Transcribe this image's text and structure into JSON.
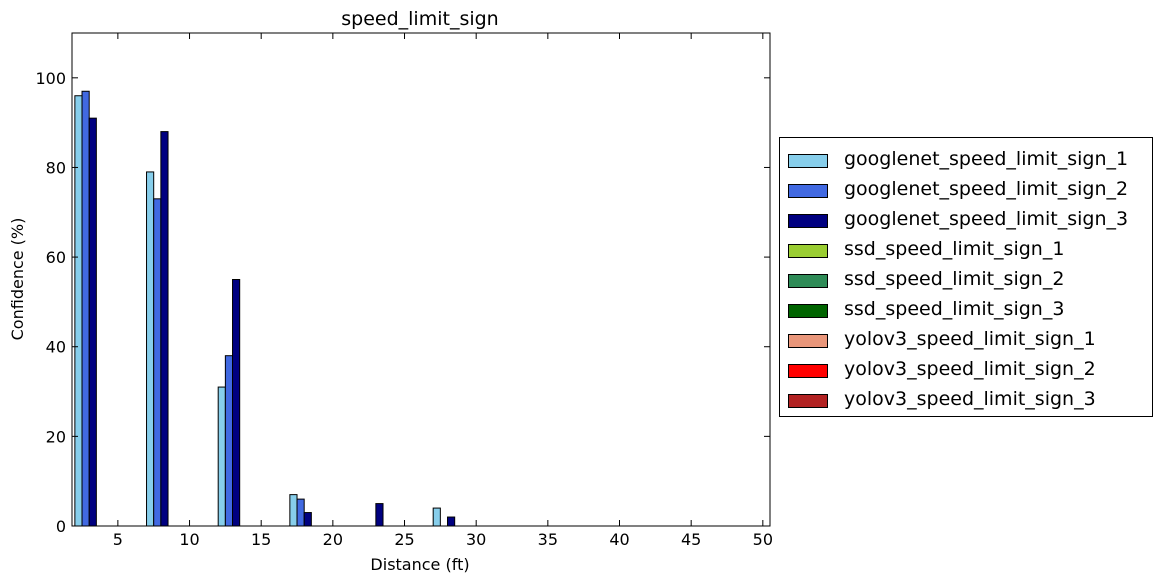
{
  "chart_data": {
    "type": "bar",
    "title": "speed_limit_sign",
    "xlabel": "Distance (ft)",
    "ylabel": "Confidence (%)",
    "xlim": [
      1.8,
      50.5
    ],
    "ylim": [
      0,
      110
    ],
    "xticks": [
      5,
      10,
      15,
      20,
      25,
      30,
      35,
      40,
      45,
      50
    ],
    "yticks": [
      0,
      20,
      40,
      60,
      80,
      100
    ],
    "x": [
      2,
      7,
      12,
      17,
      22,
      27,
      32,
      37,
      42,
      47
    ],
    "grid": false,
    "legend_position": "outside-right",
    "series": [
      {
        "name": "googlenet_speed_limit_sign_1",
        "color": "#87CEEB",
        "values": [
          96,
          79,
          31,
          7,
          0,
          4,
          0,
          0,
          0,
          0
        ]
      },
      {
        "name": "googlenet_speed_limit_sign_2",
        "color": "#4169E1",
        "values": [
          97,
          73,
          38,
          6,
          0,
          0,
          0,
          0,
          0,
          0
        ]
      },
      {
        "name": "googlenet_speed_limit_sign_3",
        "color": "#000080",
        "values": [
          91,
          88,
          55,
          3,
          5,
          2,
          0,
          0,
          0,
          0
        ]
      },
      {
        "name": "ssd_speed_limit_sign_1",
        "color": "#9ACD32",
        "values": [
          0,
          0,
          0,
          0,
          0,
          0,
          0,
          0,
          0,
          0
        ]
      },
      {
        "name": "ssd_speed_limit_sign_2",
        "color": "#2E8B57",
        "values": [
          0,
          0,
          0,
          0,
          0,
          0,
          0,
          0,
          0,
          0
        ]
      },
      {
        "name": "ssd_speed_limit_sign_3",
        "color": "#006400",
        "values": [
          0,
          0,
          0,
          0,
          0,
          0,
          0,
          0,
          0,
          0
        ]
      },
      {
        "name": "yolov3_speed_limit_sign_1",
        "color": "#E9967A",
        "values": [
          0,
          0,
          0,
          0,
          0,
          0,
          0,
          0,
          0,
          0
        ]
      },
      {
        "name": "yolov3_speed_limit_sign_2",
        "color": "#FF0000",
        "values": [
          0,
          0,
          0,
          0,
          0,
          0,
          0,
          0,
          0,
          0
        ]
      },
      {
        "name": "yolov3_speed_limit_sign_3",
        "color": "#B22222",
        "values": [
          0,
          0,
          0,
          0,
          0,
          0,
          0,
          0,
          0,
          0
        ]
      }
    ]
  }
}
